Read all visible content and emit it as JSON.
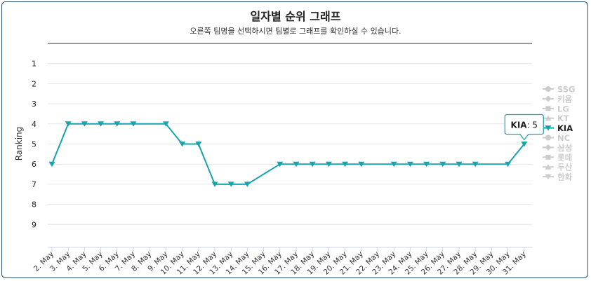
{
  "title": "일자별 순위 그래프",
  "subtitle": "오른쪽 팀명을 선택하시면 팀별로 그래프를 확인하실 수 있습니다.",
  "colors": {
    "series": "#17a5ab",
    "legend_inactive": "#cccccc",
    "legend_active": "#222222",
    "grid": "#e6e6e6",
    "title_rule": "#333333"
  },
  "chart_data": {
    "type": "line",
    "ylabel": "Ranking",
    "y_reversed": true,
    "ylim": [
      0,
      10
    ],
    "yticks": [
      1,
      2,
      3,
      4,
      5,
      6,
      7,
      8,
      9
    ],
    "categories": [
      "2. May",
      "3. May",
      "4. May",
      "5. May",
      "6. May",
      "7. May",
      "8. May",
      "9. May",
      "10. May",
      "11. May",
      "12. May",
      "13. May",
      "14. May",
      "15. May",
      "16. May",
      "17. May",
      "18. May",
      "19. May",
      "20. May",
      "21. May",
      "22. May",
      "23. May",
      "24. May",
      "25. May",
      "26. May",
      "27. May",
      "28. May",
      "29. May",
      "30. May",
      "31. May"
    ],
    "series": [
      {
        "name": "KIA",
        "values": [
          6,
          4,
          4,
          4,
          4,
          4,
          null,
          4,
          5,
          5,
          7,
          7,
          7,
          null,
          6,
          6,
          6,
          6,
          6,
          6,
          null,
          6,
          6,
          6,
          6,
          6,
          6,
          null,
          6,
          5
        ]
      }
    ],
    "legend": {
      "placement": "right",
      "items": [
        {
          "label": "SSG",
          "marker": "circle",
          "active": false
        },
        {
          "label": "키움",
          "marker": "diamond",
          "active": false
        },
        {
          "label": "LG",
          "marker": "square",
          "active": false
        },
        {
          "label": "KT",
          "marker": "triangle",
          "active": false
        },
        {
          "label": "KIA",
          "marker": "triangle-down",
          "active": true
        },
        {
          "label": "NC",
          "marker": "circle",
          "active": false
        },
        {
          "label": "삼성",
          "marker": "diamond",
          "active": false
        },
        {
          "label": "롯데",
          "marker": "square",
          "active": false
        },
        {
          "label": "두산",
          "marker": "triangle",
          "active": false
        },
        {
          "label": "한화",
          "marker": "triangle-down",
          "active": false
        }
      ]
    },
    "tooltip": {
      "series": "KIA",
      "category": "31. May",
      "label": "KIA",
      "value": "5"
    }
  }
}
